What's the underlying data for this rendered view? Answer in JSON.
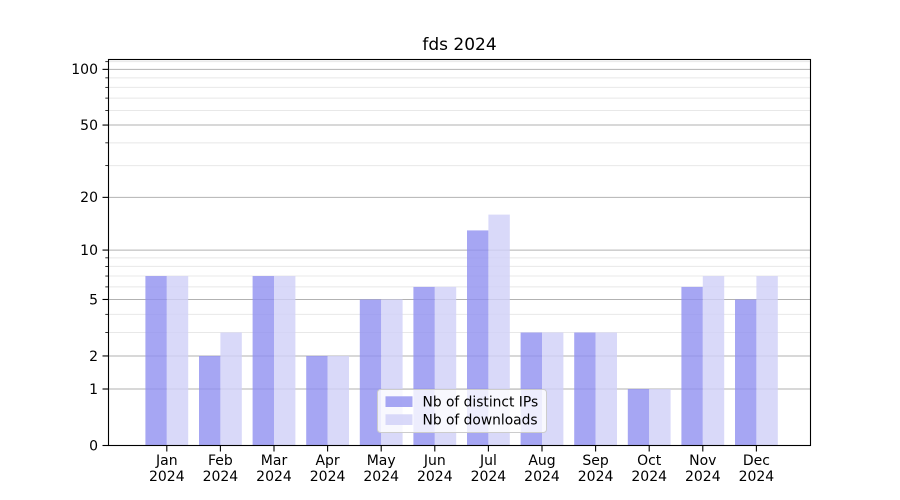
{
  "title": "fds 2024",
  "chart_data": {
    "type": "bar",
    "title": "fds 2024",
    "categories": [
      "Jan 2024",
      "Feb 2024",
      "Mar 2024",
      "Apr 2024",
      "May 2024",
      "Jun 2024",
      "Jul 2024",
      "Aug 2024",
      "Sep 2024",
      "Oct 2024",
      "Nov 2024",
      "Dec 2024"
    ],
    "series": [
      {
        "name": "Nb of distinct IPs",
        "color": "#9090f0",
        "values": [
          7,
          2,
          7,
          2,
          5,
          6,
          13,
          3,
          3,
          1,
          6,
          5
        ]
      },
      {
        "name": "Nb of downloads",
        "color": "#d0d0f8",
        "values": [
          7,
          3,
          7,
          2,
          5,
          6,
          16,
          3,
          3,
          1,
          7,
          7
        ]
      }
    ],
    "xlabel": "",
    "ylabel": "",
    "y_scale": "log10(1+y)",
    "y_major_ticks": [
      0,
      1,
      2,
      5,
      10,
      20,
      50,
      100
    ],
    "y_minor_ticks": [
      3,
      4,
      6,
      7,
      8,
      9,
      30,
      40,
      60,
      70,
      80,
      90,
      110
    ],
    "ylim": [
      0,
      113
    ],
    "grid": true,
    "legend": {
      "position": "inside-lower-center"
    },
    "colors": {
      "grid_major": "#b2b2b2",
      "grid_minor": "#e8e8e8",
      "axis": "#000000",
      "background": "#ffffff",
      "legend_border": "#cccccc",
      "legend_background": "#ffffff"
    }
  }
}
